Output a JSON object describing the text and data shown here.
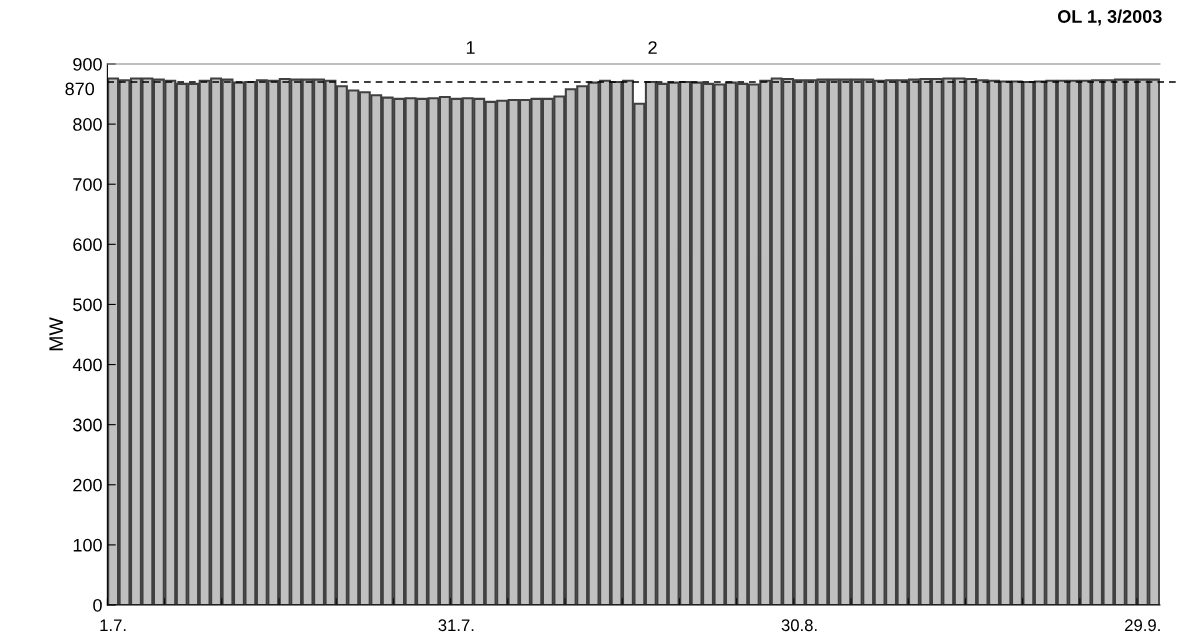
{
  "chart_data": {
    "type": "bar",
    "title": "OL 1, 3/2003",
    "ylabel": "MW",
    "categories": [
      "1.7.",
      null,
      null,
      null,
      null,
      null,
      null,
      null,
      null,
      null,
      null,
      null,
      null,
      null,
      null,
      null,
      null,
      null,
      null,
      null,
      null,
      null,
      null,
      null,
      null,
      null,
      null,
      null,
      null,
      null,
      "31.7.",
      null,
      null,
      null,
      null,
      null,
      null,
      null,
      null,
      null,
      null,
      null,
      null,
      null,
      null,
      null,
      null,
      null,
      null,
      null,
      null,
      null,
      null,
      null,
      null,
      null,
      null,
      null,
      null,
      null,
      "30.8.",
      null,
      null,
      null,
      null,
      null,
      null,
      null,
      null,
      null,
      null,
      null,
      null,
      null,
      null,
      null,
      null,
      null,
      null,
      null,
      null,
      null,
      null,
      null,
      null,
      null,
      null,
      null,
      null,
      null,
      "29.9.",
      null
    ],
    "values": [
      876,
      873,
      876,
      876,
      874,
      872,
      867,
      867,
      872,
      876,
      874,
      869,
      870,
      873,
      872,
      875,
      874,
      874,
      874,
      872,
      863,
      856,
      853,
      848,
      844,
      842,
      843,
      842,
      843,
      845,
      842,
      843,
      842,
      837,
      839,
      840,
      840,
      842,
      842,
      846,
      858,
      863,
      869,
      872,
      870,
      872,
      834,
      870,
      867,
      869,
      870,
      869,
      867,
      866,
      869,
      867,
      866,
      872,
      876,
      875,
      873,
      873,
      874,
      874,
      874,
      874,
      874,
      872,
      873,
      873,
      874,
      875,
      875,
      876,
      876,
      875,
      873,
      872,
      871,
      871,
      870,
      871,
      872,
      872,
      872,
      872,
      873,
      873,
      874,
      874,
      874,
      874
    ],
    "color": "#c0c0c0",
    "ylim": [
      0,
      900
    ],
    "yticks": [
      0,
      100,
      200,
      300,
      400,
      500,
      600,
      700,
      800,
      900
    ],
    "ref_lines": [
      {
        "axis": "y",
        "value": 870,
        "label": "870",
        "color": "#000000",
        "line_style": "dashed"
      }
    ],
    "annotations": [
      "1",
      "2"
    ]
  }
}
